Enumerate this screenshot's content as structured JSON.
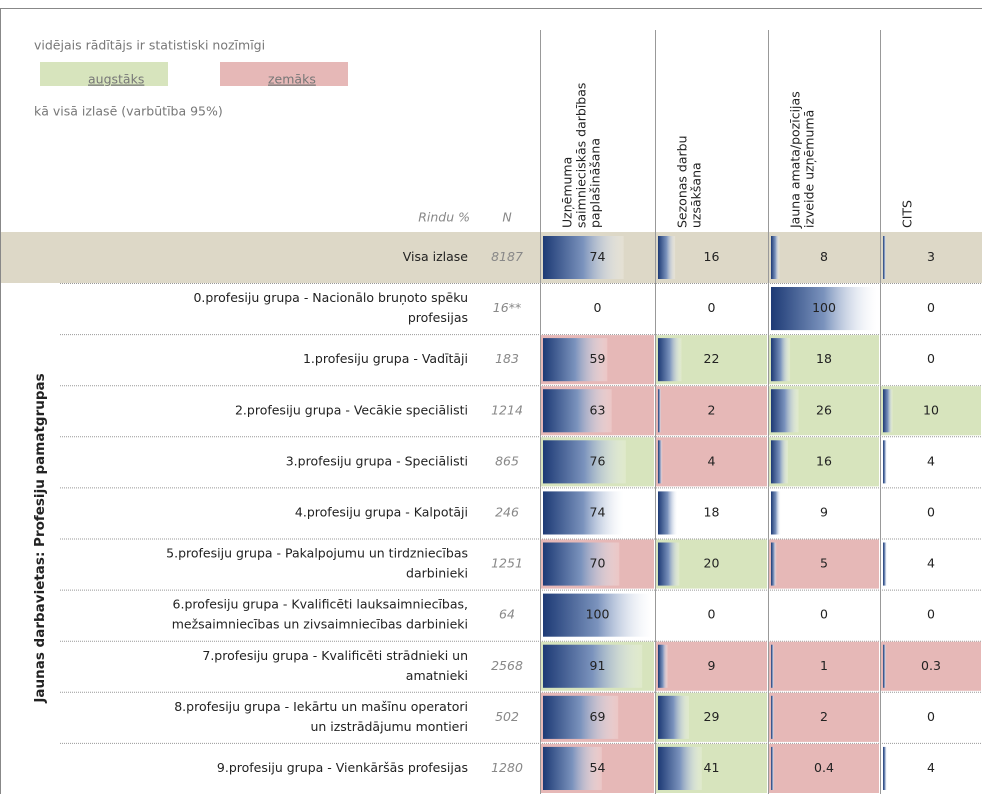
{
  "legend": {
    "intro": "vidējais rādītājs ir statistiski nozīmīgi",
    "items": [
      {
        "label": "augstāks",
        "color": "#d7e4bd"
      },
      {
        "label": "zemāks",
        "color": "#e6b8b7"
      }
    ],
    "note": "kā visā izlasē (varbūtība 95%)"
  },
  "table": {
    "row_header": "Rindu %",
    "n_header": "N",
    "columns": [
      [
        "Uzņēmuma",
        "saimnieciskās darbības",
        "paplašināšana"
      ],
      [
        "Sezonas darbu",
        "uzsākšana"
      ],
      [
        "Jauna amata/pozīcijas",
        "izveide uzņēmumā"
      ],
      [
        "CITS"
      ]
    ],
    "group_label": "Jaunas darbavietas: Profesiju pamatgrupas",
    "total": {
      "label": [
        "Visa izlase"
      ],
      "n": 8187,
      "values": [
        74,
        16,
        8,
        3
      ],
      "colors": [
        null,
        null,
        null,
        null
      ],
      "row_color": "#ddd8c7"
    },
    "rows": [
      {
        "label": [
          "0.profesiju grupa - Nacionālo bruņoto spēku",
          "profesijas"
        ],
        "n": {
          "value": 16,
          "label": "16**"
        },
        "values": [
          0,
          0,
          100,
          0
        ],
        "colors": [
          null,
          null,
          null,
          null
        ]
      },
      {
        "label": [
          "1.profesiju grupa - Vadītāji"
        ],
        "n": 183,
        "values": [
          59,
          22,
          18,
          0
        ],
        "colors": [
          "#e6b8b7",
          "#d7e4bd",
          "#d7e4bd",
          null
        ]
      },
      {
        "label": [
          "2.profesiju grupa - Vecākie speciālisti"
        ],
        "n": 1214,
        "values": [
          63,
          2,
          26,
          10
        ],
        "colors": [
          "#e6b8b7",
          "#e6b8b7",
          "#d7e4bd",
          "#d7e4bd"
        ]
      },
      {
        "label": [
          "3.profesiju grupa - Speciālisti"
        ],
        "n": 865,
        "values": [
          76,
          4,
          16,
          4
        ],
        "colors": [
          "#d7e4bd",
          "#e6b8b7",
          "#d7e4bd",
          null
        ]
      },
      {
        "label": [
          "4.profesiju grupa - Kalpotāji"
        ],
        "n": 246,
        "values": [
          74,
          18,
          9,
          0
        ],
        "colors": [
          null,
          null,
          null,
          null
        ]
      },
      {
        "label": [
          "5.profesiju grupa - Pakalpojumu un tirdzniecības",
          "darbinieki"
        ],
        "n": 1251,
        "values": [
          70,
          20,
          5,
          4
        ],
        "colors": [
          "#e6b8b7",
          "#d7e4bd",
          "#e6b8b7",
          null
        ]
      },
      {
        "label": [
          "6.profesiju grupa - Kvalificēti lauksaimniecības,",
          "mežsaimniecības un zivsaimniecības darbinieki"
        ],
        "n": 64,
        "values": [
          100,
          0,
          0,
          0
        ],
        "colors": [
          null,
          null,
          null,
          null
        ]
      },
      {
        "label": [
          "7.profesiju grupa - Kvalificēti strādnieki un",
          "amatnieki"
        ],
        "n": 2568,
        "values": [
          91,
          9,
          1,
          0.3
        ],
        "colors": [
          "#d7e4bd",
          "#e6b8b7",
          "#e6b8b7",
          "#e6b8b7"
        ]
      },
      {
        "label": [
          "8.profesiju grupa - Iekārtu un mašīnu operatori",
          "un izstrādājumu montieri"
        ],
        "n": 502,
        "values": [
          69,
          29,
          2,
          0
        ],
        "colors": [
          "#e6b8b7",
          "#d7e4bd",
          "#e6b8b7",
          null
        ]
      },
      {
        "label": [
          "9.profesiju grupa - Vienkāršās profesijas"
        ],
        "n": 1280,
        "values": [
          54,
          41,
          0.4,
          4
        ],
        "colors": [
          "#e6b8b7",
          "#d7e4bd",
          "#e6b8b7",
          null
        ]
      }
    ]
  }
}
